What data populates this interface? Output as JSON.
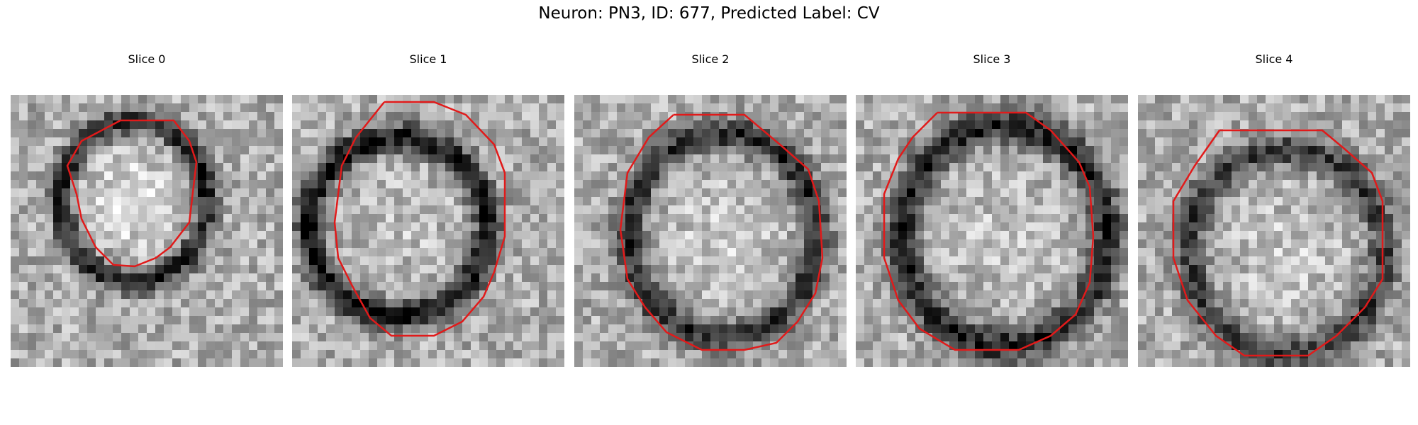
{
  "figure": {
    "title": "Neuron: PN3, ID: 677, Predicted Label: CV"
  },
  "colors": {
    "contour": "#e11a1a",
    "background": "#ffffff"
  },
  "panels": [
    {
      "title": "Slice 0"
    },
    {
      "title": "Slice 1"
    },
    {
      "title": "Slice 2"
    },
    {
      "title": "Slice 3"
    },
    {
      "title": "Slice 4"
    }
  ]
}
